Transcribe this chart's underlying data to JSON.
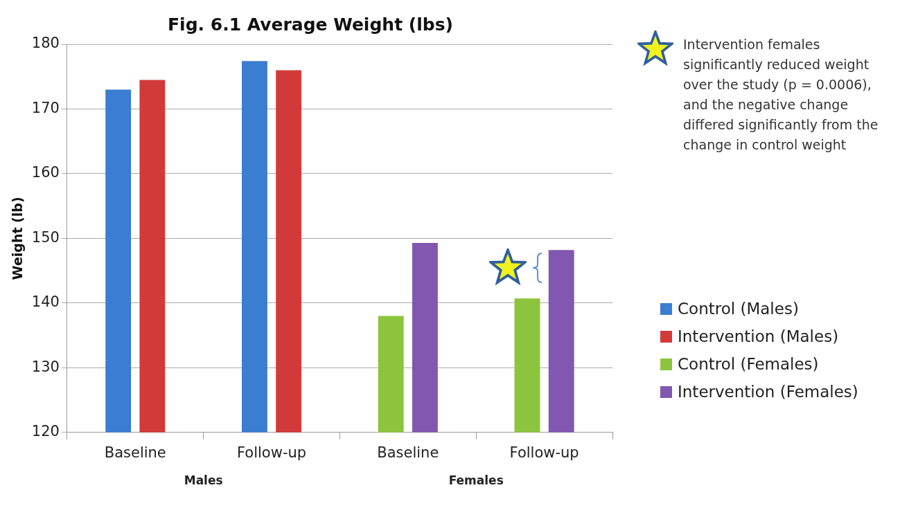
{
  "chart_data": {
    "type": "bar",
    "title": "Fig. 6.1 Average Weight (lbs)",
    "ylabel": "Weight (lb)",
    "categories": [
      "Baseline",
      "Follow-up",
      "Baseline",
      "Follow-up"
    ],
    "series": [
      {
        "name": "Control (Males)",
        "color": "#3b7dd0",
        "values": [
          173,
          177.4,
          null,
          null
        ]
      },
      {
        "name": "Intervention (Males)",
        "color": "#d23a3a",
        "values": [
          174.5,
          176,
          null,
          null
        ]
      },
      {
        "name": "Control (Females)",
        "color": "#8cc43e",
        "values": [
          null,
          null,
          138,
          140.7
        ]
      },
      {
        "name": "Intervention (Females)",
        "color": "#8257b0",
        "values": [
          null,
          null,
          149.3,
          148.2
        ]
      }
    ],
    "ylim": [
      120,
      180
    ],
    "yticks": [
      120,
      130,
      140,
      150,
      160,
      170,
      180
    ],
    "grid": "y",
    "legend": "right",
    "annotations": [
      "Males",
      "Females",
      "Intervention females significantly reduced weight over the study (p = 0.0006), and the negative change differed significantly from the change in control weight"
    ]
  }
}
